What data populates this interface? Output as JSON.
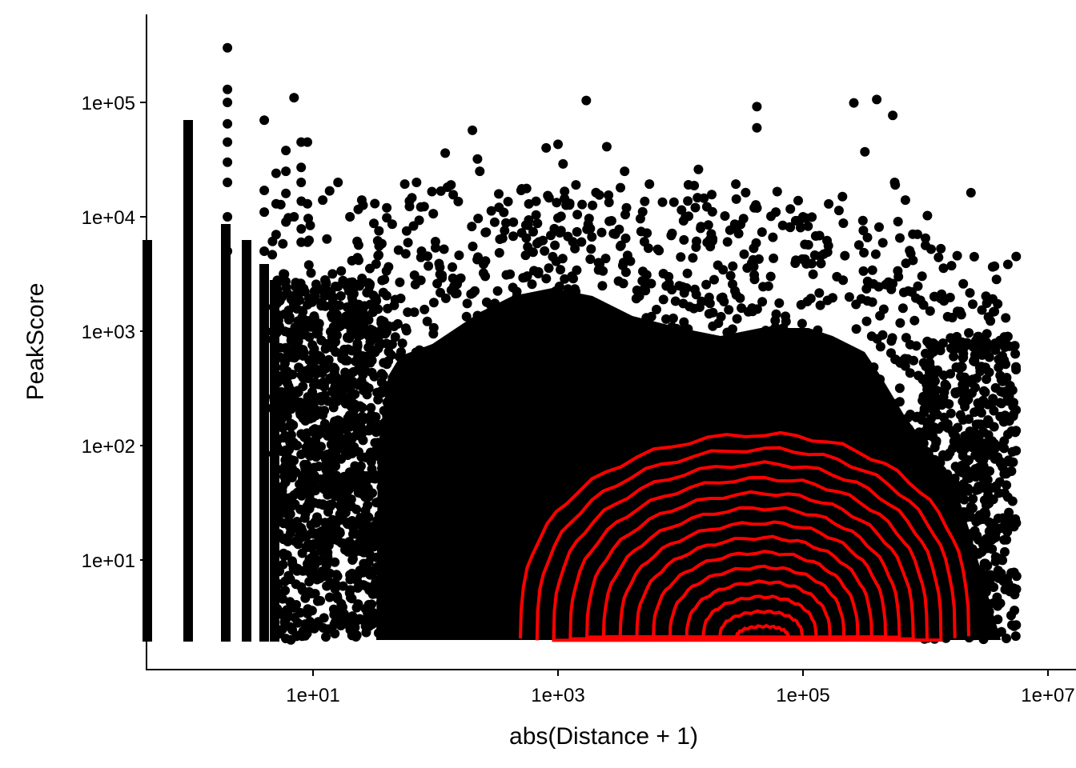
{
  "chart_data": {
    "type": "scatter",
    "xlabel": "abs(Distance + 1)",
    "ylabel": "PeakScore",
    "x_scale": "log10",
    "y_scale": "log10",
    "xlim": [
      0.55,
      11000000
    ],
    "ylim": [
      1.0,
      500000
    ],
    "x_ticks": [
      {
        "value": 10,
        "label": "1e+01"
      },
      {
        "value": 1000,
        "label": "1e+03"
      },
      {
        "value": 100000,
        "label": "1e+05"
      },
      {
        "value": 10000000,
        "label": "1e+07"
      }
    ],
    "y_ticks": [
      {
        "value": 10,
        "label": "1e+01"
      },
      {
        "value": 100,
        "label": "1e+02"
      },
      {
        "value": 1000,
        "label": "1e+03"
      },
      {
        "value": 10000,
        "label": "1e+04"
      },
      {
        "value": 100000,
        "label": "1e+05"
      }
    ],
    "point_color": "#000000",
    "contour_color": "#ff0000",
    "grid": false,
    "legend": "none",
    "points_sample": [
      [
        2,
        300000
      ],
      [
        2,
        130000
      ],
      [
        2,
        100000
      ],
      [
        2,
        65000
      ],
      [
        2,
        45000
      ],
      [
        2,
        30000
      ],
      [
        2,
        20000
      ],
      [
        2,
        10000
      ],
      [
        2,
        5000
      ],
      [
        4,
        70000
      ],
      [
        4,
        17000
      ],
      [
        4,
        11000
      ],
      [
        4,
        5000
      ],
      [
        5,
        24000
      ],
      [
        5,
        13000
      ],
      [
        5,
        7000
      ],
      [
        6,
        38000
      ],
      [
        6,
        25000
      ],
      [
        6,
        16000
      ],
      [
        6,
        9000
      ],
      [
        7,
        110000
      ],
      [
        7,
        10000
      ],
      [
        8,
        45000
      ],
      [
        8,
        27000
      ],
      [
        8,
        20000
      ],
      [
        8,
        6000
      ],
      [
        9,
        45000
      ],
      [
        9,
        13000
      ],
      [
        9,
        6000
      ],
      [
        12,
        14000
      ],
      [
        16,
        20000
      ],
      [
        20,
        10000
      ],
      [
        25,
        14000
      ],
      [
        40,
        12000
      ],
      [
        70,
        20000
      ],
      [
        120,
        36000
      ],
      [
        200,
        57000
      ],
      [
        220,
        32000
      ],
      [
        230,
        25000
      ],
      [
        500,
        17000
      ],
      [
        800,
        40000
      ],
      [
        1000,
        43000
      ],
      [
        1100,
        29000
      ],
      [
        1400,
        19000
      ],
      [
        1700,
        104000
      ],
      [
        2500,
        41000
      ],
      [
        3500,
        25000
      ],
      [
        11000,
        10000
      ],
      [
        14000,
        26000
      ],
      [
        40000,
        12000
      ],
      [
        42000,
        92000
      ],
      [
        42000,
        60000
      ],
      [
        60000,
        11000
      ],
      [
        100000,
        10000
      ],
      [
        210000,
        15000
      ],
      [
        260000,
        99000
      ],
      [
        320000,
        37000
      ],
      [
        400000,
        106000
      ],
      [
        540000,
        77000
      ],
      [
        560000,
        20000
      ],
      [
        1000000,
        6500
      ],
      [
        5500000,
        4500
      ],
      [
        3000000,
        300
      ]
    ],
    "contour_levels": 14
  }
}
